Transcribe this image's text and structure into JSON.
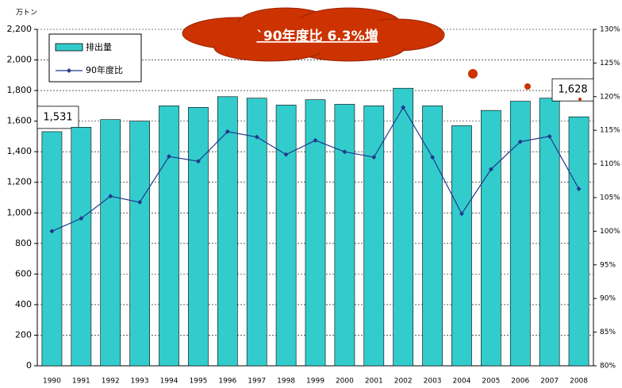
{
  "chart_data": {
    "type": "bar",
    "units_label": "万トン",
    "annotation": "`90年度比 6.3%増",
    "categories": [
      "1990",
      "1991",
      "1992",
      "1993",
      "1994",
      "1995",
      "1996",
      "1997",
      "1998",
      "1999",
      "2000",
      "2001",
      "2002",
      "2003",
      "2004",
      "2005",
      "2006",
      "2007",
      "2008"
    ],
    "series": [
      {
        "name": "排出量",
        "type": "bar",
        "color": "#33CCCC",
        "values": [
          1531,
          1560,
          1610,
          1600,
          1700,
          1690,
          1760,
          1750,
          1705,
          1740,
          1710,
          1700,
          1815,
          1700,
          1570,
          1670,
          1730,
          1750,
          1628
        ],
        "value_labels": [
          "1,531",
          null,
          null,
          null,
          null,
          null,
          null,
          null,
          null,
          null,
          null,
          null,
          null,
          null,
          null,
          null,
          null,
          null,
          "1,628"
        ]
      },
      {
        "name": "90年度比",
        "type": "line",
        "axis": "y2",
        "color": "#1F3A8C",
        "values": [
          100.0,
          101.9,
          105.2,
          104.3,
          111.1,
          110.4,
          114.8,
          114.0,
          111.4,
          113.5,
          111.8,
          111.0,
          118.4,
          111.0,
          102.6,
          109.2,
          113.3,
          114.1,
          106.3
        ]
      }
    ],
    "ylim": [
      0,
      2200
    ],
    "yticks": [
      0,
      200,
      400,
      600,
      800,
      {
        "value": 1000,
        "label": "1,000"
      },
      {
        "value": 1200,
        "label": "1,200"
      },
      {
        "value": 1400,
        "label": "1,400"
      },
      {
        "value": 1600,
        "label": "1,600"
      },
      {
        "value": 1800,
        "label": "1,800"
      },
      {
        "value": 2000,
        "label": "2,000"
      },
      {
        "value": 2200,
        "label": "2,200"
      }
    ],
    "y2lim": [
      80,
      130
    ],
    "y2ticks": [
      {
        "value": 80,
        "label": "80%"
      },
      {
        "value": 85,
        "label": "85%"
      },
      {
        "value": 90,
        "label": "90%"
      },
      {
        "value": 95,
        "label": "95%"
      },
      {
        "value": 100,
        "label": "100%"
      },
      {
        "value": 105,
        "label": "105%"
      },
      {
        "value": 110,
        "label": "110%"
      },
      {
        "value": 115,
        "label": "115%"
      },
      {
        "value": 120,
        "label": "120%"
      },
      {
        "value": 125,
        "label": "125%"
      },
      {
        "value": 130,
        "label": "130%"
      }
    ],
    "grid": true,
    "legend": "upper left"
  }
}
